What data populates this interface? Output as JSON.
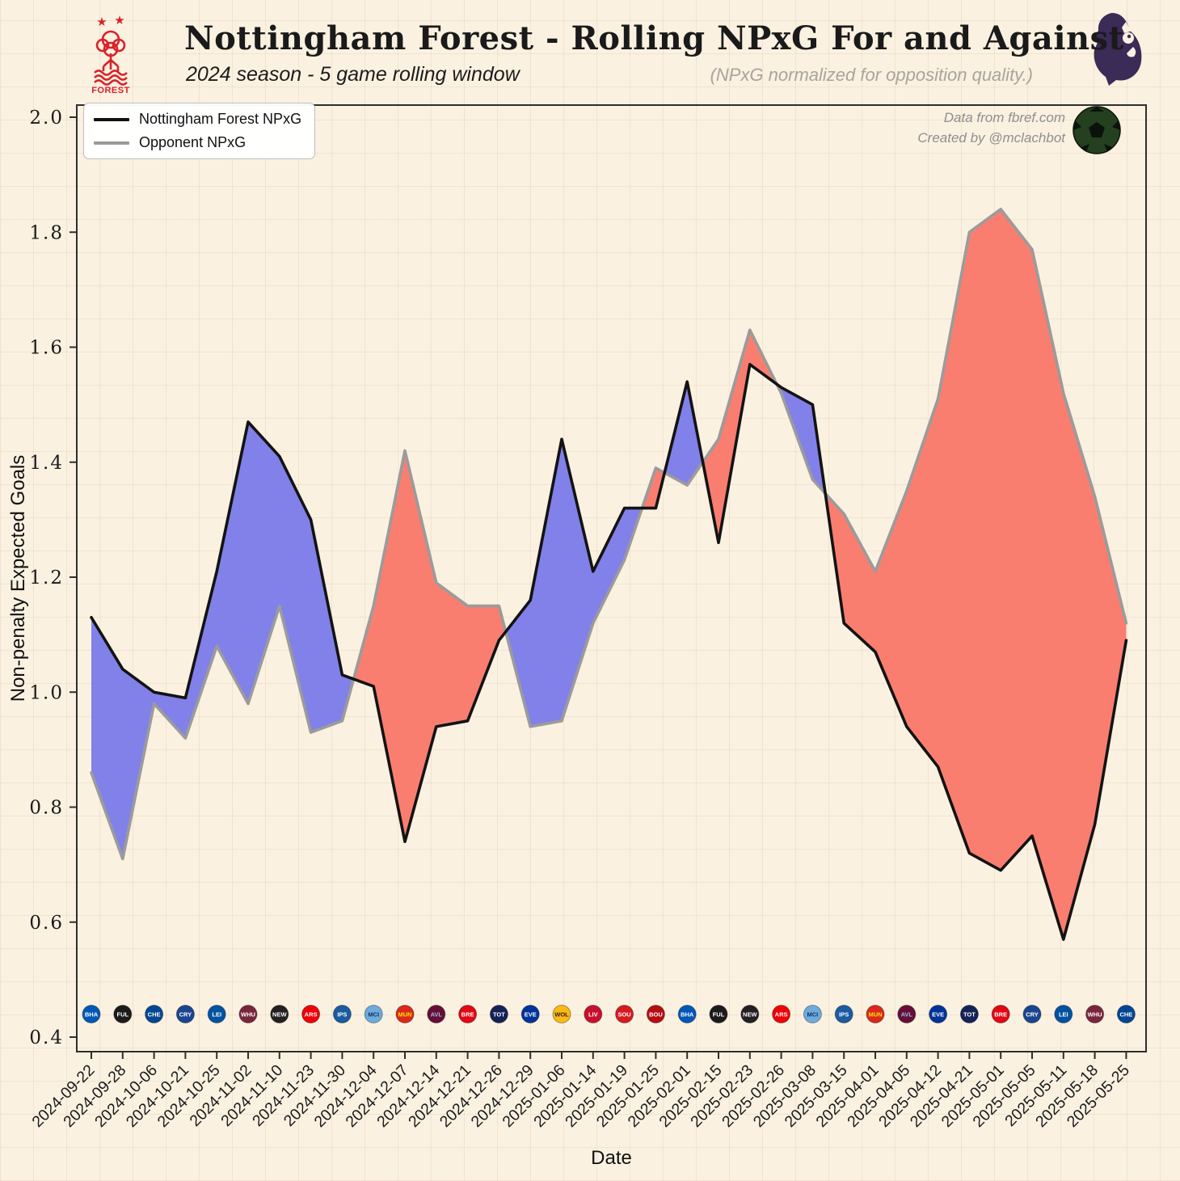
{
  "page": {
    "background": "#faf1e1",
    "accent_blue": "#8280e9",
    "accent_red": "#f97e70"
  },
  "header": {
    "title": "Nottingham Forest - Rolling NPxG For and Against",
    "subtitle": "2024 season - 5 game rolling window",
    "note": "(NPxG normalized for opposition quality.)"
  },
  "badges": {
    "forest_label": "FOREST",
    "forest_color": "#da2128",
    "premier_league_color": "#3a2b57"
  },
  "attribution": {
    "line1": "Data from fbref.com",
    "line2": "Created by @mclachbot"
  },
  "legend": [
    {
      "label": "Nottingham Forest NPxG",
      "color": "#131313"
    },
    {
      "label": "Opponent NPxG",
      "color": "#9b9b9b"
    }
  ],
  "chart_data": {
    "type": "area",
    "title": "Nottingham Forest - Rolling NPxG For and Against",
    "subtitle": "2024 season - 5 game rolling window",
    "xlabel": "Date",
    "ylabel": "Non-penalty Expected Goals",
    "ylim": [
      0.37,
      2.02
    ],
    "yticks": [
      0.4,
      0.6,
      0.8,
      1.0,
      1.2,
      1.4,
      1.6,
      1.8,
      2.0
    ],
    "grid": "off",
    "legend_position": "upper left",
    "x_dates": [
      "2024-09-22",
      "2024-09-28",
      "2024-10-06",
      "2024-10-21",
      "2024-10-25",
      "2024-11-02",
      "2024-11-10",
      "2024-11-23",
      "2024-11-30",
      "2024-12-04",
      "2024-12-07",
      "2024-12-14",
      "2024-12-21",
      "2024-12-26",
      "2024-12-29",
      "2025-01-06",
      "2025-01-14",
      "2025-01-19",
      "2025-01-25",
      "2025-02-01",
      "2025-02-15",
      "2025-02-23",
      "2025-02-26",
      "2025-03-08",
      "2025-03-15",
      "2025-04-01",
      "2025-04-05",
      "2025-04-12",
      "2025-04-21",
      "2025-05-01",
      "2025-05-05",
      "2025-05-11",
      "2025-05-18",
      "2025-05-25"
    ],
    "series": [
      {
        "name": "Nottingham Forest NPxG",
        "color": "#131313",
        "values": [
          1.13,
          1.04,
          1.0,
          0.99,
          1.21,
          1.47,
          1.41,
          1.3,
          1.03,
          1.01,
          0.74,
          0.94,
          0.95,
          1.09,
          1.16,
          1.44,
          1.21,
          1.32,
          1.32,
          1.54,
          1.26,
          1.57,
          1.53,
          1.5,
          1.12,
          1.07,
          0.94,
          0.87,
          0.72,
          0.69,
          0.75,
          0.57,
          0.77,
          1.09
        ]
      },
      {
        "name": "Opponent NPxG",
        "color": "#9b9b9b",
        "values": [
          0.86,
          0.71,
          0.98,
          0.92,
          1.08,
          0.98,
          1.15,
          0.93,
          0.95,
          1.15,
          1.42,
          1.19,
          1.15,
          1.15,
          0.94,
          0.95,
          1.12,
          1.23,
          1.39,
          1.36,
          1.44,
          1.63,
          1.52,
          1.37,
          1.31,
          1.21,
          1.35,
          1.51,
          1.8,
          1.84,
          1.77,
          1.52,
          1.34,
          1.12
        ]
      }
    ],
    "fill_forest_above_color": "#8280e9",
    "fill_opponent_above_color": "#f97e70",
    "logo_row_value": 0.44,
    "opponent_logos": [
      {
        "team": "Brighton",
        "abbr": "BHA",
        "color": "#0057b8",
        "text_color": "#ffffff"
      },
      {
        "team": "Fulham",
        "abbr": "FUL",
        "color": "#1b1b1b",
        "text_color": "#ffffff"
      },
      {
        "team": "Chelsea",
        "abbr": "CHE",
        "color": "#034694",
        "text_color": "#ffffff"
      },
      {
        "team": "Crystal Palace",
        "abbr": "CRY",
        "color": "#1b458f",
        "text_color": "#ffffff"
      },
      {
        "team": "Leicester",
        "abbr": "LEI",
        "color": "#0053a0",
        "text_color": "#ffffff"
      },
      {
        "team": "West Ham",
        "abbr": "WHU",
        "color": "#7a263a",
        "text_color": "#ffffff"
      },
      {
        "team": "Newcastle",
        "abbr": "NEW",
        "color": "#241f20",
        "text_color": "#ffffff"
      },
      {
        "team": "Arsenal",
        "abbr": "ARS",
        "color": "#ef0107",
        "text_color": "#ffffff"
      },
      {
        "team": "Ipswich",
        "abbr": "IPS",
        "color": "#1b5ba0",
        "text_color": "#ffffff"
      },
      {
        "team": "Man City",
        "abbr": "MCI",
        "color": "#6cabdd",
        "text_color": "#1c2c5b"
      },
      {
        "team": "Man United",
        "abbr": "MUN",
        "color": "#da291c",
        "text_color": "#ffe500"
      },
      {
        "team": "Aston Villa",
        "abbr": "AVL",
        "color": "#670e36",
        "text_color": "#95bfe5"
      },
      {
        "team": "Brentford",
        "abbr": "BRE",
        "color": "#e30613",
        "text_color": "#ffffff"
      },
      {
        "team": "Tottenham",
        "abbr": "TOT",
        "color": "#132257",
        "text_color": "#ffffff"
      },
      {
        "team": "Everton",
        "abbr": "EVE",
        "color": "#003399",
        "text_color": "#ffffff"
      },
      {
        "team": "Wolves",
        "abbr": "WOL",
        "color": "#fdb913",
        "text_color": "#231f20"
      },
      {
        "team": "Liverpool",
        "abbr": "LIV",
        "color": "#c8102e",
        "text_color": "#ffffff"
      },
      {
        "team": "Southampton",
        "abbr": "SOU",
        "color": "#d71920",
        "text_color": "#ffffff"
      },
      {
        "team": "Bournemouth",
        "abbr": "BOU",
        "color": "#b50e12",
        "text_color": "#ffffff"
      },
      {
        "team": "Brighton",
        "abbr": "BHA",
        "color": "#0057b8",
        "text_color": "#ffffff"
      },
      {
        "team": "Fulham",
        "abbr": "FUL",
        "color": "#1b1b1b",
        "text_color": "#ffffff"
      },
      {
        "team": "Newcastle",
        "abbr": "NEW",
        "color": "#241f20",
        "text_color": "#ffffff"
      },
      {
        "team": "Arsenal",
        "abbr": "ARS",
        "color": "#ef0107",
        "text_color": "#ffffff"
      },
      {
        "team": "Man City",
        "abbr": "MCI",
        "color": "#6cabdd",
        "text_color": "#1c2c5b"
      },
      {
        "team": "Ipswich",
        "abbr": "IPS",
        "color": "#1b5ba0",
        "text_color": "#ffffff"
      },
      {
        "team": "Man United",
        "abbr": "MUN",
        "color": "#da291c",
        "text_color": "#ffe500"
      },
      {
        "team": "Aston Villa",
        "abbr": "AVL",
        "color": "#670e36",
        "text_color": "#95bfe5"
      },
      {
        "team": "Everton",
        "abbr": "EVE",
        "color": "#003399",
        "text_color": "#ffffff"
      },
      {
        "team": "Tottenham",
        "abbr": "TOT",
        "color": "#132257",
        "text_color": "#ffffff"
      },
      {
        "team": "Brentford",
        "abbr": "BRE",
        "color": "#e30613",
        "text_color": "#ffffff"
      },
      {
        "team": "Crystal Palace",
        "abbr": "CRY",
        "color": "#1b458f",
        "text_color": "#ffffff"
      },
      {
        "team": "Leicester",
        "abbr": "LEI",
        "color": "#0053a0",
        "text_color": "#ffffff"
      },
      {
        "team": "West Ham",
        "abbr": "WHU",
        "color": "#7a263a",
        "text_color": "#ffffff"
      },
      {
        "team": "Chelsea",
        "abbr": "CHE",
        "color": "#034694",
        "text_color": "#ffffff"
      }
    ]
  }
}
